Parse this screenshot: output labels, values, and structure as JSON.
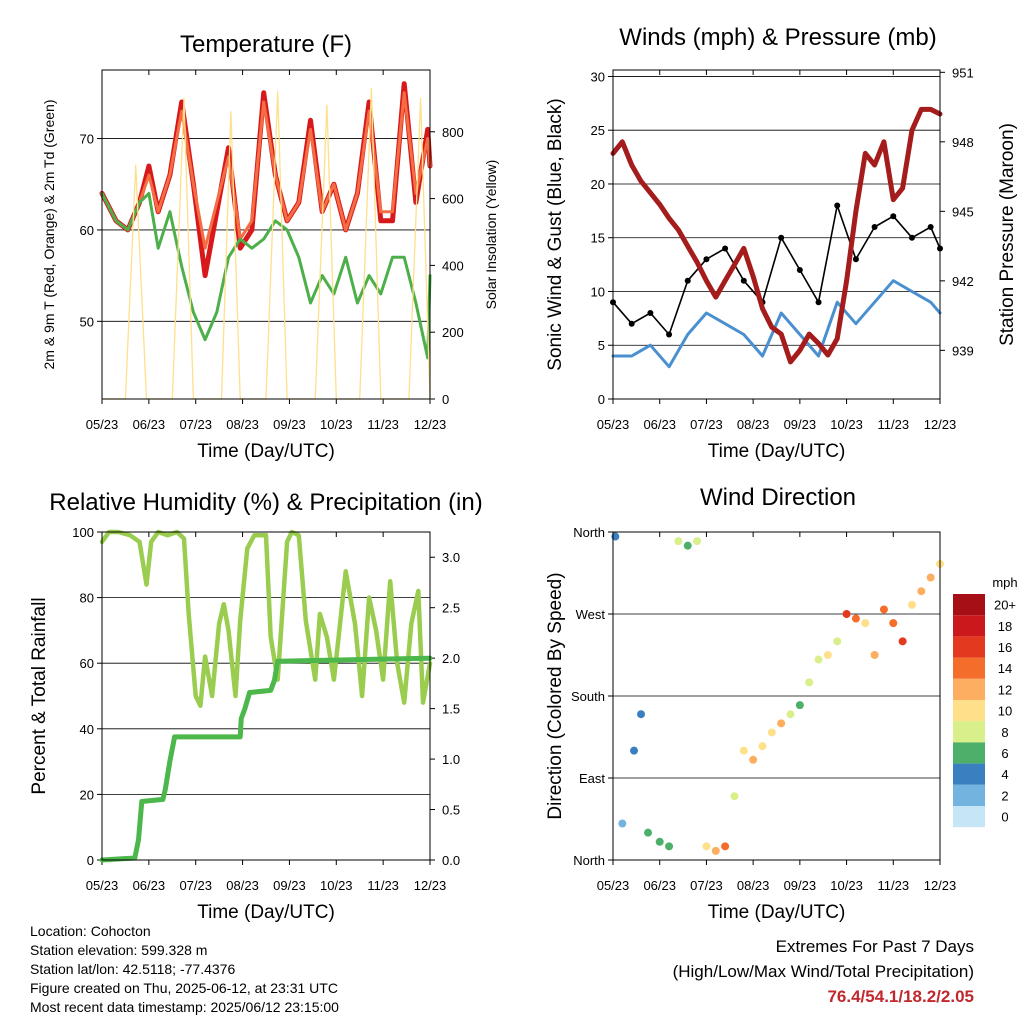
{
  "chart_data": [
    {
      "type": "line",
      "title": "Temperature (F)",
      "xlabel": "Time (Day/UTC)",
      "ylabel": "2m & 9m T (Red, Orange) & 2m Td (Green)",
      "ylabel_right": "Solar Insolation (Yellow)",
      "xticks": [
        "05/23",
        "06/23",
        "07/23",
        "08/23",
        "09/23",
        "10/23",
        "11/23",
        "12/23"
      ],
      "xlim": [
        0,
        7
      ],
      "ylim": [
        41.5,
        77.5
      ],
      "yticks": [
        50,
        60,
        70
      ],
      "ylim_right": [
        0,
        985
      ],
      "yticks_right": [
        0,
        200,
        400,
        600,
        800
      ],
      "grid": true,
      "series": [
        {
          "name": "2m T",
          "color": "#d7191c",
          "axis": "left",
          "x": [
            0,
            0.3,
            0.55,
            0.8,
            1.0,
            1.2,
            1.45,
            1.7,
            1.95,
            2.2,
            2.45,
            2.7,
            2.95,
            3.2,
            3.45,
            3.7,
            3.95,
            4.2,
            4.45,
            4.7,
            4.95,
            5.2,
            5.45,
            5.7,
            5.95,
            6.2,
            6.45,
            6.7,
            6.95,
            7.0
          ],
          "values": [
            64,
            61,
            60,
            63,
            67,
            62,
            66,
            74,
            65,
            55,
            62,
            69,
            58,
            60,
            75,
            66,
            61,
            63,
            72,
            62,
            65,
            60,
            64,
            74,
            61,
            61,
            76,
            63,
            71,
            67
          ]
        },
        {
          "name": "9m T",
          "color": "#f46d43",
          "axis": "left",
          "x": [
            0,
            0.3,
            0.55,
            0.8,
            1.0,
            1.2,
            1.45,
            1.7,
            1.95,
            2.2,
            2.45,
            2.7,
            2.95,
            3.2,
            3.45,
            3.7,
            3.95,
            4.2,
            4.45,
            4.7,
            4.95,
            5.2,
            5.45,
            5.7,
            5.95,
            6.2,
            6.45,
            6.7,
            6.95,
            7.0
          ],
          "values": [
            64,
            61,
            60,
            63,
            66,
            62,
            66,
            73,
            65,
            58,
            63,
            68,
            59,
            61,
            74,
            66,
            61,
            63,
            71,
            62,
            65,
            60,
            64,
            73,
            62,
            62,
            75,
            64,
            70,
            67
          ]
        },
        {
          "name": "2m Td",
          "color": "#4daf4a",
          "axis": "left",
          "x": [
            0,
            0.3,
            0.55,
            0.8,
            1.0,
            1.2,
            1.45,
            1.7,
            1.95,
            2.2,
            2.45,
            2.7,
            2.95,
            3.2,
            3.45,
            3.7,
            3.95,
            4.2,
            4.45,
            4.7,
            4.95,
            5.2,
            5.45,
            5.7,
            5.95,
            6.2,
            6.45,
            6.7,
            6.95,
            7.0
          ],
          "values": [
            64,
            61,
            60,
            63,
            64,
            58,
            62,
            56,
            51,
            48,
            51,
            57,
            59,
            58,
            59,
            61,
            60,
            57,
            52,
            55,
            53,
            57,
            52,
            55,
            53,
            57,
            57,
            52,
            46,
            55
          ]
        },
        {
          "name": "Solar Insolation",
          "color": "#fee08b",
          "axis": "right",
          "x": [
            0.0,
            0.15,
            0.5,
            0.72,
            0.95,
            1.15,
            1.5,
            1.75,
            1.95,
            2.15,
            2.55,
            2.75,
            2.95,
            3.15,
            3.5,
            3.75,
            3.95,
            4.15,
            4.55,
            4.8,
            5.0,
            5.15,
            5.5,
            5.75,
            5.95,
            6.15,
            6.55,
            6.8,
            7.0
          ],
          "values": [
            0,
            0,
            0,
            700,
            0,
            0,
            0,
            900,
            0,
            0,
            0,
            860,
            0,
            0,
            0,
            920,
            0,
            0,
            0,
            880,
            0,
            0,
            0,
            930,
            0,
            0,
            0,
            900,
            0
          ]
        }
      ]
    },
    {
      "type": "line",
      "title": "Winds (mph) & Pressure (mb)",
      "xlabel": "Time (Day/UTC)",
      "ylabel": "Sonic Wind & Gust (Blue, Black)",
      "ylabel_right": "Station Pressure (Maroon)",
      "xticks": [
        "05/23",
        "06/23",
        "07/23",
        "08/23",
        "09/23",
        "10/23",
        "11/23",
        "12/23"
      ],
      "xlim": [
        0,
        7
      ],
      "ylim": [
        0,
        30.6
      ],
      "yticks": [
        0,
        5,
        10,
        15,
        20,
        25,
        30
      ],
      "ylim_right": [
        936.9,
        951.1
      ],
      "yticks_right": [
        939,
        942,
        945,
        948,
        951
      ],
      "grid": true,
      "series": [
        {
          "name": "Sonic Wind",
          "color": "#4a90d0",
          "axis": "left",
          "x": [
            0,
            0.4,
            0.8,
            1.2,
            1.6,
            2.0,
            2.4,
            2.8,
            3.2,
            3.6,
            4.0,
            4.4,
            4.8,
            5.2,
            5.6,
            6.0,
            6.4,
            6.8,
            7.0
          ],
          "values": [
            4,
            4,
            5,
            3,
            6,
            8,
            7,
            6,
            4,
            8,
            6,
            4,
            9,
            7,
            9,
            11,
            10,
            9,
            8
          ]
        },
        {
          "name": "Gust",
          "color": "#000000",
          "axis": "left",
          "x": [
            0,
            0.4,
            0.8,
            1.2,
            1.6,
            2.0,
            2.4,
            2.8,
            3.2,
            3.6,
            4.0,
            4.4,
            4.8,
            5.2,
            5.6,
            6.0,
            6.4,
            6.8,
            7.0
          ],
          "values": [
            9,
            7,
            8,
            6,
            11,
            13,
            14,
            11,
            9,
            15,
            12,
            9,
            18,
            13,
            16,
            17,
            15,
            16,
            14
          ]
        },
        {
          "name": "Station Pressure",
          "color": "#a51c1c",
          "axis": "right",
          "x": [
            0,
            0.2,
            0.4,
            0.6,
            0.8,
            1.0,
            1.2,
            1.4,
            1.6,
            1.8,
            2.0,
            2.2,
            2.4,
            2.6,
            2.8,
            3.0,
            3.2,
            3.4,
            3.6,
            3.8,
            4.0,
            4.2,
            4.4,
            4.6,
            4.8,
            5.0,
            5.2,
            5.4,
            5.6,
            5.8,
            6.0,
            6.2,
            6.4,
            6.6,
            6.8,
            7.0
          ],
          "values": [
            947.5,
            948,
            947,
            946.3,
            945.8,
            945.3,
            944.7,
            944.2,
            943.5,
            942.8,
            942,
            941.3,
            942,
            942.7,
            943.4,
            942.2,
            940.8,
            940,
            939.7,
            938.5,
            939,
            939.7,
            939.3,
            938.8,
            939.5,
            942,
            945,
            947.5,
            947,
            948,
            945.5,
            946,
            948.5,
            949.4,
            949.4,
            949.2
          ]
        }
      ]
    },
    {
      "type": "line",
      "title": "Relative Humidity (%) & Precipitation (in)",
      "xlabel": "Time (Day/UTC)",
      "ylabel": "Percent & Total Rainfall",
      "xticks": [
        "05/23",
        "06/23",
        "07/23",
        "08/23",
        "09/23",
        "10/23",
        "11/23",
        "12/23"
      ],
      "xlim": [
        0,
        7
      ],
      "ylim": [
        0,
        100
      ],
      "yticks": [
        0,
        20,
        40,
        60,
        80,
        100
      ],
      "ylim_right": [
        0,
        3.25
      ],
      "yticks_right": [
        0.0,
        0.5,
        1.0,
        1.5,
        2.0,
        2.5,
        3.0
      ],
      "grid": true,
      "series": [
        {
          "name": "Relative Humidity",
          "color": "#9acd4f",
          "axis": "left",
          "x": [
            0,
            0.15,
            0.35,
            0.6,
            0.8,
            0.95,
            1.05,
            1.2,
            1.4,
            1.6,
            1.75,
            1.85,
            2.0,
            2.1,
            2.2,
            2.35,
            2.5,
            2.6,
            2.7,
            2.85,
            2.95,
            3.1,
            3.25,
            3.4,
            3.5,
            3.6,
            3.75,
            3.95,
            4.05,
            4.2,
            4.35,
            4.55,
            4.65,
            4.8,
            4.95,
            5.05,
            5.2,
            5.4,
            5.55,
            5.7,
            5.85,
            6.0,
            6.15,
            6.3,
            6.45,
            6.6,
            6.75,
            6.85,
            7.0
          ],
          "values": [
            97,
            100,
            100,
            99,
            97,
            84,
            97,
            100,
            99,
            100,
            98,
            75,
            50,
            47,
            62,
            50,
            72,
            78,
            70,
            50,
            73,
            95,
            99,
            99,
            99,
            68,
            55,
            97,
            100,
            99,
            73,
            55,
            75,
            68,
            55,
            68,
            88,
            72,
            50,
            80,
            70,
            55,
            85,
            60,
            48,
            72,
            82,
            48,
            60
          ]
        },
        {
          "name": "Total Rainfall",
          "color": "#4cb74b",
          "axis": "right",
          "x": [
            0,
            0.7,
            0.78,
            0.85,
            1.3,
            1.35,
            1.45,
            1.55,
            2.35,
            2.95,
            2.97,
            3.05,
            3.15,
            3.6,
            3.68,
            3.75,
            7.0
          ],
          "values": [
            0,
            0.02,
            0.2,
            0.58,
            0.6,
            0.7,
            0.98,
            1.22,
            1.22,
            1.22,
            1.4,
            1.5,
            1.66,
            1.68,
            1.78,
            1.97,
            2.0
          ]
        }
      ]
    },
    {
      "type": "scatter",
      "title": "Wind Direction",
      "xlabel": "Time (Day/UTC)",
      "ylabel": "Direction (Colored By Speed)",
      "xticks": [
        "05/23",
        "06/23",
        "07/23",
        "08/23",
        "09/23",
        "10/23",
        "11/23",
        "12/23"
      ],
      "xlim": [
        0,
        7
      ],
      "ylim": [
        0,
        360
      ],
      "yticks": [
        "North",
        "East",
        "South",
        "West",
        "North"
      ],
      "grid": true,
      "colorbar": {
        "title": "mph",
        "labels": [
          "20+",
          "18",
          "16",
          "14",
          "12",
          "10",
          "8",
          "6",
          "4",
          "2",
          "0"
        ],
        "colors": [
          "#a50f15",
          "#cb181d",
          "#e3391f",
          "#f46d2b",
          "#fdae61",
          "#fee08b",
          "#d9ef8b",
          "#4daf6a",
          "#3a7fc0",
          "#73b3e0",
          "#c6e6f7"
        ]
      },
      "series": [
        {
          "name": "Wind Direction",
          "x": [
            0.05,
            0.2,
            0.45,
            0.6,
            0.75,
            1.0,
            1.2,
            1.4,
            1.6,
            1.8,
            2.0,
            2.2,
            2.4,
            2.6,
            2.8,
            3.0,
            3.2,
            3.4,
            3.6,
            3.8,
            4.0,
            4.2,
            4.4,
            4.6,
            4.8,
            5.0,
            5.2,
            5.4,
            5.6,
            5.8,
            6.0,
            6.2,
            6.4,
            6.6,
            6.8,
            7.0
          ],
          "values": [
            355,
            40,
            120,
            160,
            30,
            20,
            15,
            350,
            345,
            350,
            15,
            10,
            15,
            70,
            120,
            110,
            125,
            140,
            150,
            160,
            170,
            195,
            220,
            225,
            240,
            270,
            265,
            260,
            225,
            275,
            260,
            240,
            280,
            295,
            310,
            325
          ],
          "speeds": [
            4,
            3,
            4,
            5,
            6,
            6,
            7,
            8,
            7,
            8,
            10,
            12,
            14,
            8,
            10,
            12,
            11,
            10,
            12,
            9,
            6,
            8,
            9,
            10,
            8,
            16,
            14,
            10,
            12,
            14,
            15,
            16,
            10,
            12,
            12,
            10
          ]
        }
      ]
    }
  ],
  "info": {
    "location": "Location: Cohocton",
    "elevation": "Station elevation: 599.328 m",
    "latlon": "Station lat/lon: 42.5118; -77.4376",
    "created": "Figure created on Thu, 2025-06-12, at 23:31 UTC",
    "timestamp": "Most recent data timestamp: 2025/06/12 23:15:00"
  },
  "extremes": {
    "title": "Extremes For Past 7 Days",
    "subtitle": "(High/Low/Max Wind/Total Precipitation)",
    "values": "76.4/54.1/18.2/2.05",
    "value_color": "#c0282d"
  }
}
